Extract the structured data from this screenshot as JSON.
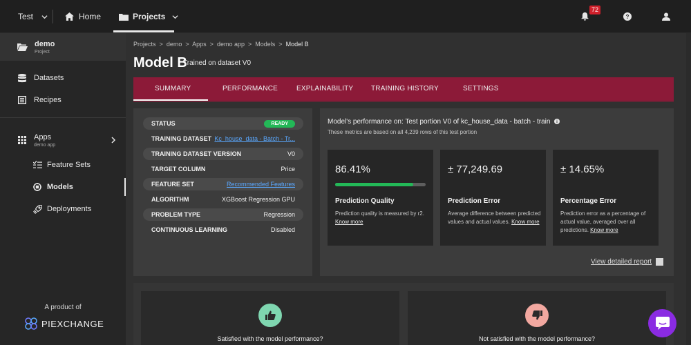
{
  "topbar": {
    "workspace": "Test",
    "home": "Home",
    "projects": "Projects",
    "notifications_count": "72"
  },
  "sidebar": {
    "project_name": "demo",
    "project_type": "Project",
    "datasets": "Datasets",
    "recipes": "Recipes",
    "apps": "Apps",
    "apps_sub": "demo app",
    "feature_sets": "Feature Sets",
    "models": "Models",
    "deployments": "Deployments",
    "product_of": "A product of",
    "brand": "PIEXCHANGE"
  },
  "breadcrumb": [
    "Projects",
    "demo",
    "Apps",
    "demo app",
    "Models",
    "Model B"
  ],
  "page": {
    "title": "Model B",
    "subtitle": "Trained on dataset V0"
  },
  "tabs": [
    "SUMMARY",
    "PERFORMANCE",
    "EXPLAINABILITY",
    "TRAINING HISTORY",
    "SETTINGS"
  ],
  "details": {
    "status_label": "STATUS",
    "status_value": "READY",
    "training_dataset_label": "TRAINING DATASET",
    "training_dataset_value": "Kc_house_data - Batch - Tr...",
    "dataset_version_label": "TRAINING DATASET VERSION",
    "dataset_version_value": "V0",
    "target_label": "TARGET COLUMN",
    "target_value": "Price",
    "feature_set_label": "FEATURE SET",
    "feature_set_value": "Recommended Features",
    "algorithm_label": "ALGORITHM",
    "algorithm_value": "XGBoost Regression GPU",
    "problem_label": "PROBLEM TYPE",
    "problem_value": "Regression",
    "cl_label": "CONTINUOUS LEARNING",
    "cl_value": "Disabled"
  },
  "performance": {
    "title": "Model's performance on: Test portion V0 of kc_house_data - batch - train",
    "subtitle": "These metrics are based on all 4,239 rows of this test portion",
    "quality_value": "86.41%",
    "quality_fraction": 0.8641,
    "quality_head": "Prediction Quality",
    "quality_desc": "Prediction quality is measured by r2.",
    "error_value": "± 77,249.69",
    "error_head": "Prediction Error",
    "error_desc": "Average difference between predicted values and actual values.",
    "pct_value": "± 14.65%",
    "pct_head": "Percentage Error",
    "pct_desc": "Prediction error as a percentage of actual value, averaged over all predictions.",
    "know_more": "Know more",
    "report_link": "View detailed report"
  },
  "feedback": {
    "satisfied": "Satisfied with the model performance?",
    "not_satisfied": "Not satisfied with the model performance?"
  },
  "colors": {
    "accent": "#8c1a38",
    "success": "#23b857",
    "chat": "#8a2be2"
  }
}
